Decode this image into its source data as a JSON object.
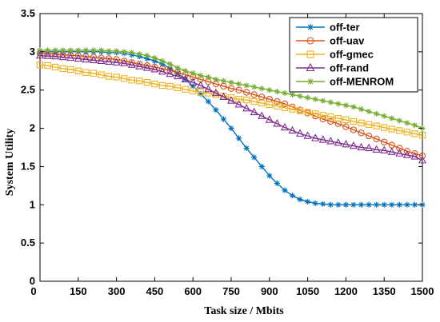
{
  "chart_data": {
    "type": "line",
    "title": "",
    "xlabel": "Task size / Mbits",
    "ylabel": "System Utility",
    "xlim": [
      0,
      1500
    ],
    "ylim": [
      0,
      3.5
    ],
    "xticks": [
      150,
      300,
      450,
      600,
      750,
      900,
      1050,
      1200,
      1350,
      1500
    ],
    "yticks": [
      0,
      0.5,
      1,
      1.5,
      2,
      2.5,
      3,
      3.5
    ],
    "xtick_labels": [
      "150",
      "300",
      "450",
      "600",
      "750",
      "900",
      "1050",
      "1200",
      "1350",
      "1500"
    ],
    "ytick_labels": [
      "0",
      "0.5",
      "1",
      "1.5",
      "2",
      "2.5",
      "3",
      "3.5"
    ],
    "origin_x_label": "0",
    "grid": false,
    "legend_position": "top-right",
    "x": [
      0,
      30,
      60,
      90,
      120,
      150,
      180,
      210,
      240,
      270,
      300,
      330,
      360,
      390,
      420,
      450,
      480,
      510,
      540,
      570,
      600,
      630,
      660,
      690,
      720,
      750,
      780,
      810,
      840,
      870,
      900,
      930,
      960,
      990,
      1020,
      1050,
      1080,
      1110,
      1140,
      1170,
      1200,
      1230,
      1260,
      1290,
      1320,
      1350,
      1380,
      1410,
      1440,
      1470,
      1500
    ],
    "series": [
      {
        "name": "off-ter",
        "color": "#0072BD",
        "marker": "star",
        "values": [
          3.0,
          3.0,
          3.0,
          3.0,
          3.0,
          3.0,
          3.0,
          3.0,
          3.0,
          2.99,
          2.99,
          2.98,
          2.96,
          2.94,
          2.91,
          2.88,
          2.84,
          2.78,
          2.72,
          2.64,
          2.55,
          2.45,
          2.35,
          2.24,
          2.12,
          2.0,
          1.87,
          1.74,
          1.62,
          1.5,
          1.38,
          1.28,
          1.19,
          1.12,
          1.07,
          1.04,
          1.02,
          1.01,
          1.0,
          1.0,
          1.0,
          1.0,
          1.0,
          1.0,
          1.0,
          1.0,
          1.0,
          1.0,
          1.0,
          1.0,
          1.0
        ]
      },
      {
        "name": "off-uav",
        "color": "#D95319",
        "marker": "circle",
        "values": [
          2.98,
          2.975,
          2.97,
          2.96,
          2.955,
          2.95,
          2.94,
          2.93,
          2.92,
          2.91,
          2.9,
          2.88,
          2.86,
          2.84,
          2.82,
          2.8,
          2.78,
          2.76,
          2.73,
          2.7,
          2.67,
          2.64,
          2.61,
          2.58,
          2.55,
          2.52,
          2.5,
          2.47,
          2.44,
          2.41,
          2.38,
          2.35,
          2.32,
          2.28,
          2.24,
          2.2,
          2.16,
          2.12,
          2.09,
          2.06,
          2.02,
          1.98,
          1.94,
          1.9,
          1.86,
          1.82,
          1.78,
          1.74,
          1.7,
          1.67,
          1.64
        ]
      },
      {
        "name": "off-gmec",
        "color": "#EDB120",
        "marker": "square",
        "values": [
          2.83,
          2.82,
          2.8,
          2.78,
          2.77,
          2.75,
          2.73,
          2.72,
          2.7,
          2.68,
          2.67,
          2.65,
          2.63,
          2.62,
          2.6,
          2.58,
          2.56,
          2.55,
          2.53,
          2.51,
          2.49,
          2.47,
          2.46,
          2.44,
          2.42,
          2.4,
          2.38,
          2.37,
          2.35,
          2.33,
          2.31,
          2.29,
          2.27,
          2.25,
          2.23,
          2.21,
          2.19,
          2.17,
          2.15,
          2.13,
          2.11,
          2.09,
          2.07,
          2.05,
          2.03,
          2.01,
          1.99,
          1.97,
          1.95,
          1.93,
          1.91
        ]
      },
      {
        "name": "off-rand",
        "color": "#7E2F8E",
        "marker": "triangle",
        "values": [
          2.95,
          2.945,
          2.94,
          2.93,
          2.92,
          2.91,
          2.9,
          2.89,
          2.88,
          2.87,
          2.86,
          2.85,
          2.83,
          2.81,
          2.79,
          2.77,
          2.74,
          2.71,
          2.68,
          2.64,
          2.6,
          2.56,
          2.51,
          2.46,
          2.41,
          2.36,
          2.31,
          2.26,
          2.21,
          2.16,
          2.11,
          2.06,
          2.01,
          1.97,
          1.93,
          1.9,
          1.87,
          1.85,
          1.83,
          1.81,
          1.79,
          1.77,
          1.75,
          1.74,
          1.72,
          1.71,
          1.69,
          1.67,
          1.65,
          1.63,
          1.58
        ]
      },
      {
        "name": "off-MENROM",
        "color": "#77AC30",
        "marker": "star",
        "values": [
          3.02,
          3.02,
          3.02,
          3.02,
          3.02,
          3.02,
          3.02,
          3.02,
          3.02,
          3.01,
          3.01,
          3.0,
          2.99,
          2.97,
          2.95,
          2.92,
          2.88,
          2.84,
          2.79,
          2.75,
          2.72,
          2.69,
          2.67,
          2.64,
          2.62,
          2.6,
          2.58,
          2.56,
          2.54,
          2.52,
          2.5,
          2.48,
          2.46,
          2.44,
          2.42,
          2.4,
          2.38,
          2.36,
          2.34,
          2.32,
          2.3,
          2.28,
          2.25,
          2.22,
          2.19,
          2.16,
          2.13,
          2.1,
          2.07,
          2.04,
          2.0
        ]
      }
    ]
  }
}
